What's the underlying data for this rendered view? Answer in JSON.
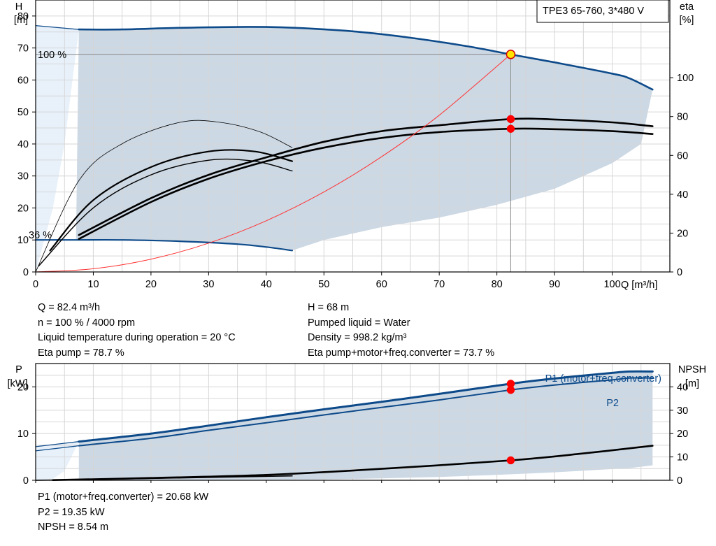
{
  "chart_data": [
    {
      "type": "line",
      "title": "TPE3 65-760, 3*480 V",
      "xlabel": "Q [m³/h]",
      "ylabel_left": [
        "H",
        "[m]"
      ],
      "ylabel_right": [
        "eta",
        "[%]"
      ],
      "xlim": [
        0,
        110
      ],
      "ylim_left": [
        0,
        85
      ],
      "ylim_right": [
        0,
        140
      ],
      "x_ticks": [
        0,
        10,
        20,
        30,
        40,
        50,
        60,
        70,
        80,
        90,
        100
      ],
      "y_ticks_left": [
        0,
        10,
        20,
        30,
        40,
        50,
        60,
        70,
        80
      ],
      "y_ticks_right": [
        0,
        20,
        40,
        60,
        80,
        100
      ],
      "grid": true,
      "annotations": [
        {
          "text": "100 %",
          "x": 0.5,
          "y": 79
        },
        {
          "text": "36 %",
          "x": -1.2,
          "y": 13
        }
      ],
      "operating_point": {
        "x": 82.4,
        "y": 68
      },
      "series": [
        {
          "role": "head-100",
          "axis": "left",
          "color": "#0d4a8a",
          "x": [
            7.5,
            15,
            25,
            37,
            45,
            55,
            65,
            75,
            82.4,
            90,
            100,
            103,
            107
          ],
          "y": [
            75.8,
            75.8,
            76.3,
            76.6,
            76.3,
            75.2,
            73.2,
            70.5,
            68,
            65.5,
            62,
            60.5,
            57
          ]
        },
        {
          "role": "head-min",
          "axis": "left",
          "color": "#0d4a8a",
          "x": [
            0,
            7,
            15,
            25,
            35,
            40,
            44.5
          ],
          "y": [
            10,
            10,
            10,
            9.6,
            8.7,
            7.8,
            6.7
          ]
        },
        {
          "role": "head-100-ext",
          "axis": "left",
          "color": "#0d4a8a",
          "x": [
            0,
            7.5
          ],
          "y": [
            77,
            75.8
          ]
        },
        {
          "role": "eta-pump",
          "axis": "right",
          "color": "#000000",
          "x": [
            7.5,
            20,
            30,
            40,
            50,
            60,
            70,
            82.4,
            90,
            100,
            107
          ],
          "y": [
            19,
            38,
            50,
            59,
            67,
            72.5,
            75.5,
            78.7,
            78.5,
            77,
            75
          ]
        },
        {
          "role": "eta-total",
          "axis": "right",
          "color": "#000000",
          "x": [
            7.5,
            20,
            30,
            40,
            50,
            60,
            70,
            82.4,
            90,
            100,
            107
          ],
          "y": [
            17,
            36,
            48,
            57,
            64,
            69,
            72,
            73.7,
            73.5,
            72.5,
            71
          ]
        },
        {
          "role": "eta-pump-low",
          "axis": "right",
          "color": "#000000",
          "x": [
            2.5,
            10,
            20,
            30,
            38,
            44.5
          ],
          "y": [
            11,
            37,
            54,
            62,
            62,
            57
          ]
        },
        {
          "role": "eta-total-low",
          "axis": "right",
          "color": "#000000",
          "x": [
            0.5,
            10,
            20,
            30,
            38,
            44.5
          ],
          "y": [
            3,
            33,
            50,
            57.5,
            57,
            52
          ]
        },
        {
          "role": "eta-thin",
          "axis": "right",
          "color": "#000000",
          "x": [
            0,
            7.5,
            15,
            25,
            32,
            39,
            44.5
          ],
          "y": [
            0,
            47,
            66,
            77,
            77,
            72,
            64
          ]
        },
        {
          "role": "system-curve",
          "axis": "left",
          "color": "#ff3333",
          "x": [
            0,
            10,
            20,
            30,
            40,
            50,
            60,
            70,
            82.4
          ],
          "y": [
            0,
            1,
            4,
            9,
            16,
            25,
            36,
            49,
            68
          ]
        }
      ],
      "markers": [
        {
          "axis": "left",
          "x": 82.4,
          "y": 68,
          "color": "#ffe400"
        },
        {
          "axis": "right",
          "x": 82.4,
          "y": 78.7,
          "color": "#ff0000"
        },
        {
          "axis": "right",
          "x": 82.4,
          "y": 73.7,
          "color": "#ff0000"
        }
      ]
    },
    {
      "type": "line",
      "ylabel_left": [
        "P",
        "[kW]"
      ],
      "ylabel_right": [
        "NPSH",
        "[m]"
      ],
      "xlim": [
        0,
        110
      ],
      "ylim_left": [
        0,
        25
      ],
      "ylim_right": [
        0,
        50
      ],
      "y_ticks_left": [
        0,
        10,
        20
      ],
      "y_ticks_right": [
        0,
        10,
        20,
        30,
        40
      ],
      "grid": true,
      "legend": [
        "P1 (motor+freq.converter)",
        "P2"
      ],
      "series": [
        {
          "name": "P1 (motor+freq.converter)",
          "axis": "left",
          "color": "#0d4a8a",
          "x": [
            7.5,
            20,
            30,
            40,
            50,
            60,
            70,
            82.4,
            90,
            100,
            103,
            107
          ],
          "y": [
            8.3,
            10,
            11.7,
            13.5,
            15.2,
            16.8,
            18.5,
            20.68,
            21.8,
            23,
            23.3,
            23.3
          ]
        },
        {
          "name": "P2",
          "axis": "left",
          "color": "#0d4a8a",
          "x": [
            7.5,
            20,
            30,
            40,
            50,
            60,
            70,
            82.4,
            90,
            100,
            103,
            107
          ],
          "y": [
            7.4,
            9,
            10.7,
            12.3,
            14,
            15.6,
            17.2,
            19.35,
            20.4,
            21.5,
            21.9,
            21.9
          ]
        },
        {
          "role": "p1-ext",
          "axis": "left",
          "color": "#0d4a8a",
          "x": [
            0,
            7.5
          ],
          "y": [
            7.2,
            8.3
          ]
        },
        {
          "role": "p2-ext",
          "axis": "left",
          "color": "#0d4a8a",
          "x": [
            0,
            7.5
          ],
          "y": [
            6.3,
            7.4
          ]
        },
        {
          "role": "npsh",
          "axis": "right",
          "color": "#000000",
          "x": [
            3,
            20,
            40,
            60,
            82.4,
            95,
            107
          ],
          "y": [
            0.1,
            1,
            2.3,
            4.9,
            8.54,
            11.5,
            14.8
          ]
        },
        {
          "role": "npsh-low",
          "axis": "right",
          "color": "#000000",
          "x": [
            0,
            20,
            44.5
          ],
          "y": [
            0,
            0.8,
            1.9
          ]
        }
      ],
      "markers": [
        {
          "axis": "left",
          "x": 82.4,
          "y": 20.68,
          "color": "#ff0000"
        },
        {
          "axis": "left",
          "x": 82.4,
          "y": 19.35,
          "color": "#ff0000"
        },
        {
          "axis": "right",
          "x": 82.4,
          "y": 8.54,
          "color": "#ff0000"
        }
      ]
    }
  ],
  "info_top_left": [
    "Q = 82.4 m³/h",
    "n = 100 % / 4000 rpm",
    "Liquid temperature during operation = 20 °C",
    "Eta pump = 78.7 %"
  ],
  "info_top_right": [
    "H = 68 m",
    "Pumped liquid = Water",
    "Density = 998.2 kg/m³",
    "Eta pump+motor+freq.converter = 73.7 %"
  ],
  "info_bottom": [
    "P1 (motor+freq.converter) = 20.68 kW",
    "P2 = 19.35 kW",
    "NPSH = 8.54 m"
  ],
  "colors": {
    "curve_blue": "#0d4a8a",
    "area_fill": "#ccd8e4",
    "area_fill_light": "#e8f1fa",
    "system_red": "#ff3333",
    "marker_red": "#ff0000",
    "marker_yellow": "#ffe400"
  }
}
